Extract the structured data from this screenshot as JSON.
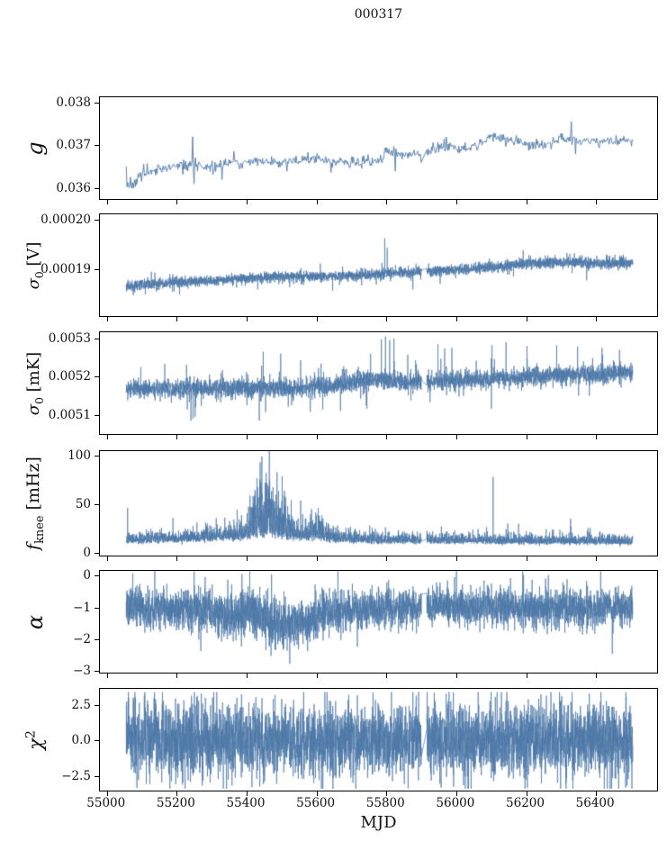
{
  "chart_data": {
    "type": "line",
    "title": "000317",
    "line_color": "#4e78a8",
    "background": "#ffffff",
    "grid": false,
    "legend": null,
    "x": {
      "label": "MJD",
      "lim": [
        54980,
        56580
      ],
      "ticks": [
        55000,
        55200,
        55400,
        55600,
        55800,
        56000,
        56200,
        56400
      ],
      "tick_labels": [
        "55000",
        "55200",
        "55400",
        "55600",
        "55800",
        "56000",
        "56200",
        "56400"
      ],
      "data_range": [
        55058,
        56508
      ],
      "gap": [
        55903,
        55918
      ]
    },
    "panels": [
      {
        "id": "g",
        "ylabel_parts": [
          {
            "t": "g",
            "s": "it"
          }
        ],
        "ylim": [
          0.03575,
          0.03812
        ],
        "yticks": [
          {
            "v": 0.038,
            "label": "0.038"
          },
          {
            "v": 0.037,
            "label": "0.037"
          },
          {
            "v": 0.036,
            "label": "0.036"
          }
        ],
        "series": {
          "dt": 2,
          "seed": 7,
          "mode": "trend",
          "lw": 0.9,
          "trend": [
            [
              55058,
              0.03615
            ],
            [
              55075,
              0.03605
            ],
            [
              55095,
              0.0363
            ],
            [
              55130,
              0.0364
            ],
            [
              55180,
              0.0365
            ],
            [
              55240,
              0.03655
            ],
            [
              55290,
              0.0365
            ],
            [
              55340,
              0.03655
            ],
            [
              55390,
              0.0366
            ],
            [
              55420,
              0.03665
            ],
            [
              55460,
              0.0366
            ],
            [
              55520,
              0.0366
            ],
            [
              55560,
              0.03665
            ],
            [
              55610,
              0.0367
            ],
            [
              55660,
              0.0366
            ],
            [
              55720,
              0.0366
            ],
            [
              55790,
              0.03665
            ],
            [
              55802,
              0.0369
            ],
            [
              55850,
              0.0368
            ],
            [
              55895,
              0.0368
            ],
            [
              55920,
              0.0368
            ],
            [
              55960,
              0.037
            ],
            [
              56010,
              0.0369
            ],
            [
              56060,
              0.037
            ],
            [
              56110,
              0.0372
            ],
            [
              56160,
              0.0371
            ],
            [
              56210,
              0.037
            ],
            [
              56260,
              0.037
            ],
            [
              56310,
              0.0372
            ],
            [
              56360,
              0.0371
            ],
            [
              56410,
              0.0371
            ],
            [
              56460,
              0.0371
            ],
            [
              56505,
              0.0371
            ]
          ],
          "noise": [
            [
              55058,
              0.00013
            ],
            [
              55110,
              7e-05
            ],
            [
              56500,
              6e-05
            ]
          ],
          "tails": {
            "p": 0.008,
            "scale": 2.2,
            "sign": 0
          },
          "spikes": [
            [
              55248,
              0.0372
            ],
            [
              55253,
              0.0361
            ],
            [
              55332,
              0.0362
            ],
            [
              55828,
              0.0364
            ],
            [
              55902,
              0.0366
            ],
            [
              56332,
              0.03755
            ],
            [
              56344,
              0.0368
            ]
          ]
        }
      },
      {
        "id": "sigma0_V",
        "ylabel_parts": [
          {
            "t": "σ",
            "s": "it"
          },
          {
            "t": "0",
            "s": "sub"
          },
          {
            "t": " [V]",
            "s": "up"
          }
        ],
        "ylim": [
          0.0001807,
          0.000201
        ],
        "yticks": [
          {
            "v": 0.0002,
            "label": "0.00020"
          },
          {
            "v": 0.00019,
            "label": "0.00019"
          }
        ],
        "series": {
          "dt": 0.35,
          "seed": 11,
          "mode": "trend",
          "lw": 0.7,
          "trend": [
            [
              55058,
              0.0001867
            ],
            [
              55150,
              0.0001872
            ],
            [
              55250,
              0.0001876
            ],
            [
              55350,
              0.000188
            ],
            [
              55450,
              0.0001884
            ],
            [
              55550,
              0.0001886
            ],
            [
              55650,
              0.0001886
            ],
            [
              55750,
              0.000189
            ],
            [
              55850,
              0.0001894
            ],
            [
              55950,
              0.0001897
            ],
            [
              56050,
              0.0001902
            ],
            [
              56150,
              0.0001908
            ],
            [
              56250,
              0.0001913
            ],
            [
              56320,
              0.0001914
            ],
            [
              56400,
              0.0001912
            ],
            [
              56500,
              0.0001913
            ]
          ],
          "noise": [
            [
              55058,
              5e-07
            ],
            [
              56500,
              6e-07
            ]
          ],
          "tails": {
            "p": 0.008,
            "scale": 3.0,
            "sign": 0
          },
          "spikes": [
            [
              55798,
              0.0001962
            ],
            [
              55805,
              0.0001943
            ]
          ]
        }
      },
      {
        "id": "sigma0_mK",
        "ylabel_parts": [
          {
            "t": "σ",
            "s": "it"
          },
          {
            "t": "0",
            "s": "sub"
          },
          {
            "t": " [mK]",
            "s": "up"
          }
        ],
        "ylim": [
          0.00505,
          0.005316
        ],
        "yticks": [
          {
            "v": 0.0053,
            "label": "0.0053"
          },
          {
            "v": 0.0052,
            "label": "0.0052"
          },
          {
            "v": 0.0051,
            "label": "0.0051"
          }
        ],
        "series": {
          "dt": 0.35,
          "seed": 13,
          "mode": "trend",
          "lw": 0.7,
          "trend": [
            [
              55058,
              0.00517
            ],
            [
              55150,
              0.005168
            ],
            [
              55250,
              0.00517
            ],
            [
              55350,
              0.005168
            ],
            [
              55450,
              0.005172
            ],
            [
              55550,
              0.00517
            ],
            [
              55650,
              0.005178
            ],
            [
              55700,
              0.005185
            ],
            [
              55750,
              0.00519
            ],
            [
              55800,
              0.005193
            ],
            [
              55850,
              0.005185
            ],
            [
              55950,
              0.005188
            ],
            [
              56050,
              0.005192
            ],
            [
              56150,
              0.005195
            ],
            [
              56250,
              0.0052
            ],
            [
              56350,
              0.005205
            ],
            [
              56450,
              0.005208
            ],
            [
              56505,
              0.005212
            ]
          ],
          "noise": [
            [
              55058,
              1.15e-05
            ],
            [
              55700,
              1.3e-05
            ],
            [
              56500,
              1.2e-05
            ]
          ],
          "tails": {
            "p": 0.015,
            "scale": 2.8,
            "sign": 0
          },
          "spikes": [
            [
              55243,
              0.005085
            ],
            [
              55249,
              0.00509
            ],
            [
              55255,
              0.005095
            ],
            [
              55788,
              0.005298
            ],
            [
              55800,
              0.005305
            ],
            [
              55812,
              0.005295
            ],
            [
              55824,
              0.0053
            ],
            [
              55450,
              0.005265
            ],
            [
              55500,
              0.00526
            ],
            [
              55950,
              0.005285
            ],
            [
              55990,
              0.005275
            ],
            [
              56105,
              0.005282
            ],
            [
              56145,
              0.00529
            ],
            [
              56205,
              0.00528
            ],
            [
              56290,
              0.005282
            ],
            [
              56350,
              0.005278
            ],
            [
              56420,
              0.005275
            ],
            [
              56470,
              0.00527
            ]
          ]
        }
      },
      {
        "id": "f_knee",
        "ylabel_parts": [
          {
            "t": "f",
            "s": "it"
          },
          {
            "t": "knee",
            "s": "sub"
          },
          {
            "t": " [mHz]",
            "s": "up"
          }
        ],
        "ylim": [
          -3,
          104.5
        ],
        "yticks": [
          {
            "v": 100,
            "label": "100"
          },
          {
            "v": 50,
            "label": "50"
          },
          {
            "v": 0,
            "label": "0"
          }
        ],
        "series": {
          "dt": 0.35,
          "seed": 17,
          "mode": "skew",
          "lw": 0.7,
          "trend": [
            [
              55058,
              10
            ],
            [
              55200,
              11
            ],
            [
              55300,
              12
            ],
            [
              55400,
              14
            ],
            [
              55450,
              16
            ],
            [
              55500,
              15
            ],
            [
              55550,
              12
            ],
            [
              55600,
              13
            ],
            [
              55650,
              11
            ],
            [
              55700,
              10
            ],
            [
              56500,
              9
            ]
          ],
          "noise": [
            [
              55058,
              5
            ],
            [
              55200,
              5
            ],
            [
              55300,
              6
            ],
            [
              55360,
              7
            ],
            [
              55400,
              8
            ],
            [
              55430,
              26
            ],
            [
              55450,
              30
            ],
            [
              55470,
              30
            ],
            [
              55500,
              22
            ],
            [
              55530,
              13
            ],
            [
              55560,
              9
            ],
            [
              55590,
              13
            ],
            [
              55610,
              14
            ],
            [
              55630,
              9
            ],
            [
              55660,
              7
            ],
            [
              55700,
              6
            ],
            [
              55750,
              5
            ],
            [
              55820,
              5
            ],
            [
              56500,
              4
            ]
          ],
          "tails": {
            "p": 0.004,
            "scale": 2.0,
            "sign": 1
          },
          "spikes": [
            [
              55062,
              46
            ],
            [
              55290,
              30
            ],
            [
              55340,
              36
            ],
            [
              55755,
              28
            ],
            [
              55800,
              26
            ],
            [
              55960,
              27
            ],
            [
              56108,
              78
            ],
            [
              56150,
              30
            ],
            [
              56330,
              35
            ]
          ]
        }
      },
      {
        "id": "alpha",
        "ylabel_parts": [
          {
            "t": "α",
            "s": "it"
          }
        ],
        "ylim": [
          -3.05,
          0.15
        ],
        "yticks": [
          {
            "v": 0,
            "label": "0"
          },
          {
            "v": -1,
            "label": "−1"
          },
          {
            "v": -2,
            "label": "−2"
          },
          {
            "v": -3,
            "label": "−3"
          }
        ],
        "series": {
          "dt": 0.35,
          "seed": 19,
          "mode": "trend",
          "lw": 0.7,
          "trend": [
            [
              55058,
              -1.02
            ],
            [
              55200,
              -1.05
            ],
            [
              55300,
              -1.1
            ],
            [
              55340,
              -1.25
            ],
            [
              55380,
              -1.3
            ],
            [
              55410,
              -1.05
            ],
            [
              55440,
              -1.2
            ],
            [
              55470,
              -1.45
            ],
            [
              55520,
              -1.55
            ],
            [
              55570,
              -1.5
            ],
            [
              55610,
              -1.3
            ],
            [
              55650,
              -1.12
            ],
            [
              55750,
              -1.05
            ],
            [
              55850,
              -1.0
            ],
            [
              55950,
              -0.95
            ],
            [
              56050,
              -1.0
            ],
            [
              56150,
              -1.0
            ],
            [
              56250,
              -1.02
            ],
            [
              56350,
              -1.0
            ],
            [
              56450,
              -1.0
            ],
            [
              56505,
              -1.0
            ]
          ],
          "noise": [
            [
              55058,
              0.3
            ],
            [
              55320,
              0.34
            ],
            [
              55480,
              0.4
            ],
            [
              55620,
              0.34
            ],
            [
              55700,
              0.3
            ],
            [
              56500,
              0.3
            ]
          ],
          "tails": {
            "p": 0.004,
            "scale": 2.6,
            "sign": 0
          },
          "spikes": []
        }
      },
      {
        "id": "chi2",
        "ylabel_parts": [
          {
            "t": "χ",
            "s": "it"
          },
          {
            "t": "2",
            "s": "sup"
          }
        ],
        "ylim": [
          -3.55,
          3.65
        ],
        "yticks": [
          {
            "v": 2.5,
            "label": "2.5"
          },
          {
            "v": 0,
            "label": "0.0"
          },
          {
            "v": -2.5,
            "label": "−2.5"
          }
        ],
        "series": {
          "dt": 0.35,
          "seed": 23,
          "mode": "center",
          "lw": 0.7,
          "trend": [
            [
              55058,
              0
            ],
            [
              56508,
              0
            ]
          ],
          "noise": [
            [
              55058,
              1.25
            ],
            [
              56500,
              1.25
            ]
          ],
          "tails": {
            "p": 0.006,
            "scale": 2.2,
            "sign": 0
          },
          "clip": [
            -3.42,
            3.42
          ],
          "spikes": []
        }
      }
    ]
  }
}
